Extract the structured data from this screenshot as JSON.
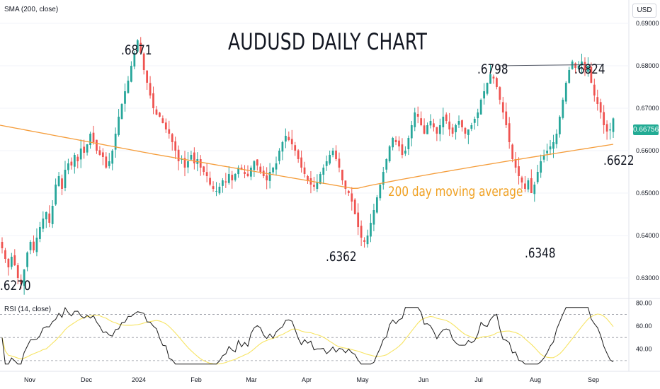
{
  "indicator_labels": {
    "sma": "SMA (200, close)",
    "rsi": "RSI (14, close)"
  },
  "currency": "USD",
  "last_price_tag": "0.66756",
  "chart_data": {
    "type": "candlestick",
    "title": "AUDUSD DAILY CHART",
    "price_axis": {
      "ticks": [
        "0.69000",
        "0.68000",
        "0.67000",
        "0.66000",
        "0.65000",
        "0.64000",
        "0.63000"
      ],
      "range": [
        0.6255,
        0.6955
      ]
    },
    "rsi_axis": {
      "ticks": [
        "80.00",
        "60.00",
        "40.00"
      ],
      "range": [
        25,
        82
      ],
      "levels": [
        70,
        50,
        30
      ]
    },
    "time_axis": [
      "Nov",
      "Dec",
      "2024",
      "Feb",
      "Mar",
      "Apr",
      "May",
      "Jun",
      "Jul",
      "Aug",
      "Sep"
    ],
    "closes": [
      0.637,
      0.6345,
      0.6325,
      0.635,
      0.633,
      0.63,
      0.6285,
      0.632,
      0.636,
      0.6385,
      0.6365,
      0.6395,
      0.642,
      0.644,
      0.6455,
      0.643,
      0.647,
      0.652,
      0.654,
      0.651,
      0.6555,
      0.657,
      0.6565,
      0.659,
      0.6575,
      0.6605,
      0.6595,
      0.6615,
      0.664,
      0.662,
      0.66,
      0.659,
      0.6585,
      0.656,
      0.6575,
      0.66,
      0.664,
      0.668,
      0.671,
      0.674,
      0.6765,
      0.68,
      0.683,
      0.686,
      0.683,
      0.679,
      0.676,
      0.673,
      0.67,
      0.6685,
      0.668,
      0.6665,
      0.665,
      0.664,
      0.662,
      0.66,
      0.6575,
      0.658,
      0.656,
      0.6575,
      0.659,
      0.657,
      0.658,
      0.656,
      0.655,
      0.654,
      0.652,
      0.651,
      0.6505,
      0.6515,
      0.653,
      0.6525,
      0.6545,
      0.653,
      0.6545,
      0.656,
      0.6555,
      0.6545,
      0.654,
      0.656,
      0.6575,
      0.6565,
      0.655,
      0.654,
      0.653,
      0.655,
      0.656,
      0.657,
      0.66,
      0.662,
      0.6635,
      0.6625,
      0.6615,
      0.66,
      0.658,
      0.656,
      0.6545,
      0.653,
      0.652,
      0.6515,
      0.6525,
      0.6545,
      0.656,
      0.6575,
      0.659,
      0.66,
      0.658,
      0.656,
      0.653,
      0.651,
      0.65,
      0.648,
      0.645,
      0.642,
      0.6395,
      0.6385,
      0.64,
      0.643,
      0.646,
      0.649,
      0.652,
      0.655,
      0.658,
      0.661,
      0.663,
      0.662,
      0.661,
      0.659,
      0.66,
      0.663,
      0.666,
      0.669,
      0.668,
      0.666,
      0.664,
      0.666,
      0.667,
      0.6655,
      0.664,
      0.666,
      0.668,
      0.667,
      0.665,
      0.664,
      0.666,
      0.667,
      0.6655,
      0.664,
      0.665,
      0.666,
      0.6675,
      0.669,
      0.672,
      0.674,
      0.676,
      0.678,
      0.677,
      0.675,
      0.672,
      0.669,
      0.666,
      0.662,
      0.658,
      0.656,
      0.654,
      0.6525,
      0.651,
      0.653,
      0.65,
      0.652,
      0.655,
      0.6575,
      0.659,
      0.66,
      0.661,
      0.662,
      0.664,
      0.668,
      0.672,
      0.676,
      0.679,
      0.681,
      0.6795,
      0.68,
      0.681,
      0.679,
      0.68,
      0.676,
      0.673,
      0.671,
      0.669,
      0.666,
      0.6645,
      0.665,
      0.6676
    ],
    "sma200": {
      "start": 0.666,
      "mid": 0.658,
      "trough": 0.651,
      "end": 0.6615,
      "label": "200 day moving average"
    },
    "annotations": [
      ".6871",
      ".6798",
      ".6824",
      ".6362",
      ".6348",
      ".6270",
      ".6622"
    ],
    "resistance_line": {
      "from": 0.68,
      "to": 0.6803
    }
  }
}
